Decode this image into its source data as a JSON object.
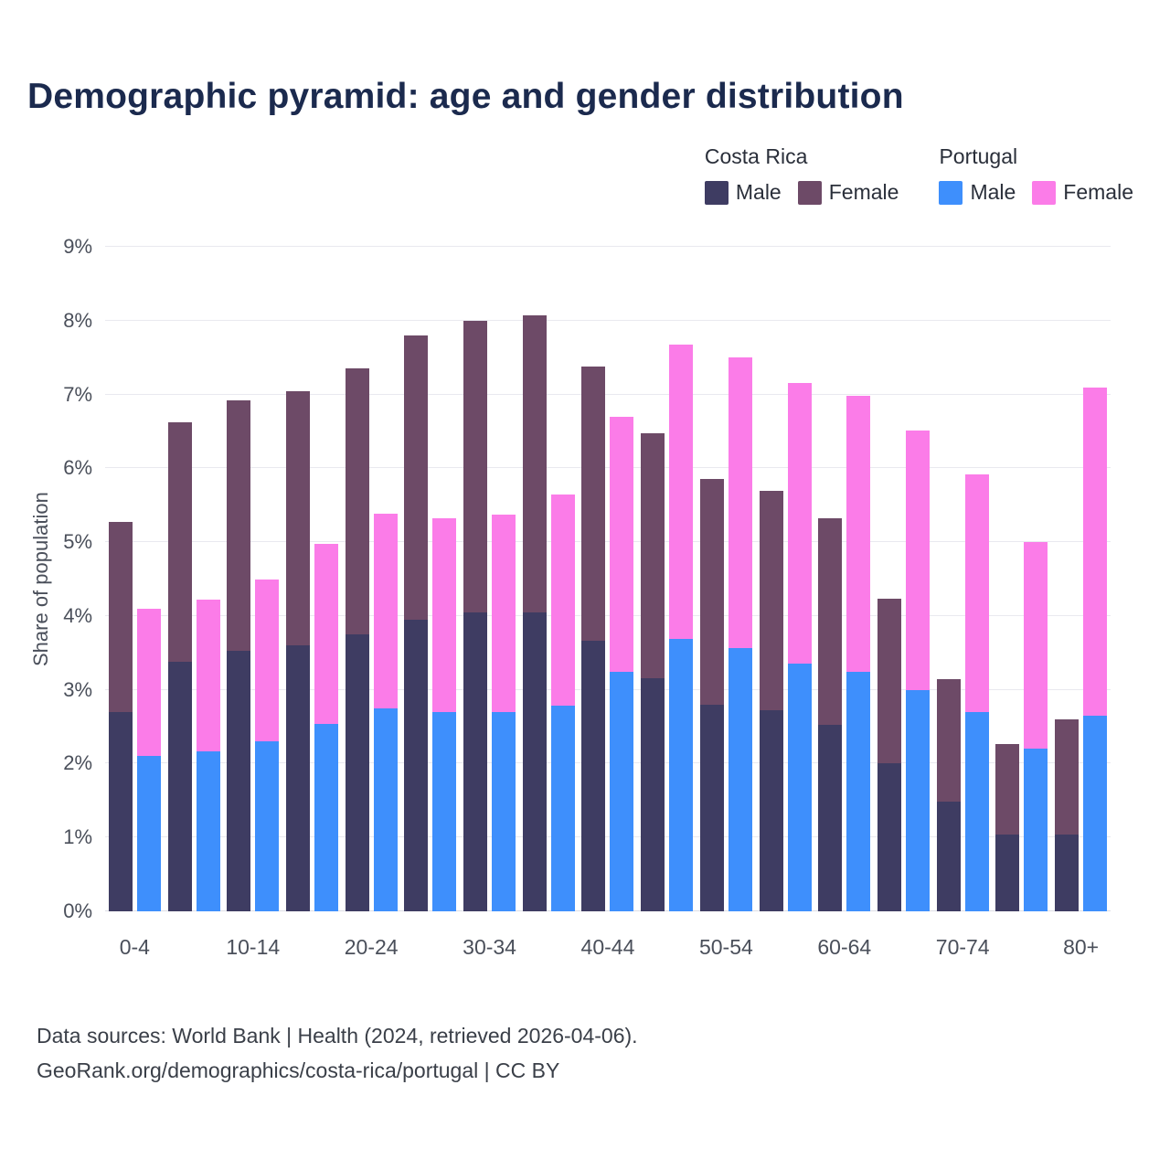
{
  "title": "Demographic pyramid: age and gender distribution",
  "legend": {
    "groups": [
      {
        "label": "Costa Rica",
        "items": [
          {
            "label": "Male",
            "color": "#3e3c62"
          },
          {
            "label": "Female",
            "color": "#6d4a67"
          }
        ]
      },
      {
        "label": "Portugal",
        "items": [
          {
            "label": "Male",
            "color": "#3e8ffc"
          },
          {
            "label": "Female",
            "color": "#fb7ce8"
          }
        ]
      }
    ]
  },
  "chart_data": {
    "type": "bar",
    "stacked": true,
    "title": "Demographic pyramid: age and gender distribution",
    "ylabel": "Share of population",
    "ylim": [
      0,
      9
    ],
    "y_ticks": [
      "0%",
      "1%",
      "2%",
      "3%",
      "4%",
      "5%",
      "6%",
      "7%",
      "8%",
      "9%"
    ],
    "grid": true,
    "legend_position": "top-right",
    "categories": [
      "0-4",
      "5-9",
      "10-14",
      "15-19",
      "20-24",
      "25-29",
      "30-34",
      "35-39",
      "40-44",
      "45-49",
      "50-54",
      "55-59",
      "60-64",
      "65-69",
      "70-74",
      "75-79",
      "80+"
    ],
    "visible_x_tick_labels": [
      "0-4",
      "10-14",
      "20-24",
      "30-34",
      "40-44",
      "50-54",
      "60-64",
      "70-74",
      "80+"
    ],
    "x_tick_every": 2,
    "series": [
      {
        "name": "Costa Rica Male",
        "color": "#3e3c62",
        "values": [
          2.7,
          3.38,
          3.53,
          3.6,
          3.75,
          3.95,
          4.05,
          4.05,
          3.67,
          3.16,
          2.8,
          2.72,
          2.52,
          2.0,
          1.48,
          1.04,
          1.04
        ]
      },
      {
        "name": "Costa Rica Female",
        "color": "#6d4a67",
        "values": [
          2.58,
          3.24,
          3.39,
          3.45,
          3.6,
          3.85,
          3.95,
          4.02,
          3.71,
          3.31,
          3.05,
          2.98,
          2.8,
          2.23,
          1.67,
          1.23,
          1.56
        ]
      },
      {
        "name": "Portugal Male",
        "color": "#3e8ffc",
        "values": [
          2.1,
          2.17,
          2.3,
          2.54,
          2.75,
          2.7,
          2.7,
          2.78,
          3.24,
          3.69,
          3.57,
          3.36,
          3.24,
          3.0,
          2.7,
          2.2,
          2.65
        ]
      },
      {
        "name": "Portugal Female",
        "color": "#fb7ce8",
        "values": [
          2.0,
          2.05,
          2.2,
          2.44,
          2.63,
          2.62,
          2.67,
          2.87,
          3.46,
          3.99,
          3.93,
          3.8,
          3.74,
          3.51,
          3.22,
          2.8,
          4.45
        ]
      }
    ]
  },
  "footer": {
    "line1": "Data sources: World Bank | Health (2024, retrieved 2026-04-06).",
    "line2": "GeoRank.org/demographics/costa-rica/portugal | CC BY"
  }
}
